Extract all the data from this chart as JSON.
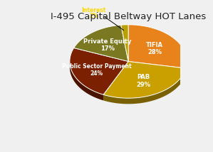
{
  "title": "I-495 Capital Beltway HOT Lanes",
  "slices": [
    {
      "label": "TIFIA",
      "pct": "28%",
      "value": 28,
      "color": "#E8821A",
      "text_color": "#ffffff"
    },
    {
      "label": "PAB",
      "pct": "29%",
      "value": 29,
      "color": "#C9A000",
      "text_color": "#ffffff"
    },
    {
      "label": "Public Sector Payment",
      "pct": "24%",
      "value": 24,
      "color": "#7B2000",
      "text_color": "#ffffff"
    },
    {
      "label": "Private Equity",
      "pct": "17%",
      "value": 17,
      "color": "#7A7820",
      "text_color": "#ffffff"
    },
    {
      "label": "Interest",
      "pct": "2%",
      "value": 2,
      "color": "#B8A000",
      "text_color": "#FFD700"
    }
  ],
  "background_color": "#f0f0f0",
  "title_fontsize": 9.5,
  "title_color": "#222222",
  "startangle": 90
}
